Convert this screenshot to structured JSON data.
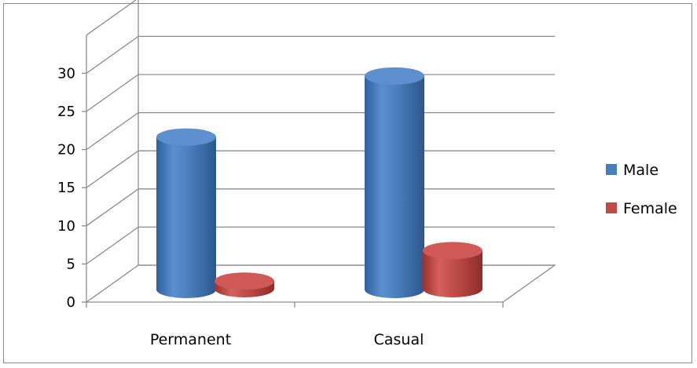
{
  "chart_data": {
    "type": "bar",
    "style": "3d-cylinder",
    "categories": [
      "Permanent",
      "Casual"
    ],
    "series": [
      {
        "name": "Male",
        "values": [
          20,
          28
        ],
        "color": "#4a7ebb"
      },
      {
        "name": "Female",
        "values": [
          1,
          5
        ],
        "color": "#be4b48"
      }
    ],
    "yticks": [
      "0",
      "5",
      "10",
      "15",
      "20",
      "25",
      "30"
    ],
    "ylim": [
      0,
      35
    ],
    "grid": true,
    "legend": "right"
  }
}
